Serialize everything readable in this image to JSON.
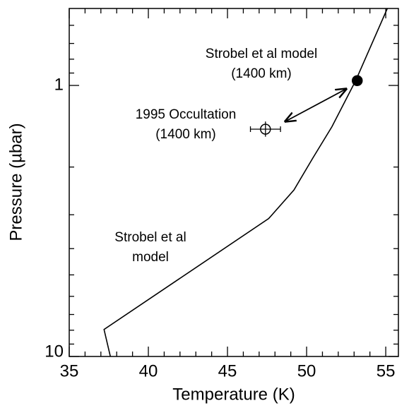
{
  "chart_data": {
    "type": "line",
    "xlabel": "Temperature (K)",
    "ylabel": "Pressure (µbar)",
    "xlim": [
      35,
      55.8
    ],
    "ylim": [
      0.52,
      10
    ],
    "log_y": true,
    "y_inverted": true,
    "xticks": [
      35,
      40,
      45,
      50,
      55
    ],
    "xminor": [
      36,
      37,
      38,
      39,
      41,
      42,
      43,
      44,
      46,
      47,
      48,
      49,
      51,
      52,
      53,
      54
    ],
    "yticks": [
      1,
      10
    ],
    "yminor": [
      0.6,
      0.7,
      0.8,
      0.9,
      2,
      3,
      4,
      5,
      6,
      7,
      8,
      9
    ],
    "series": [
      {
        "color": "#000000",
        "x": [
          37.6,
          37.2,
          47.6,
          49.2,
          50.4,
          51.6,
          53.1,
          55.1
        ],
        "values": [
          10,
          7.95,
          3.1,
          2.43,
          1.85,
          1.42,
          0.96,
          0.52
        ]
      }
    ],
    "points": [
      {
        "x": 53.2,
        "y": 0.96,
        "fill": "#000000"
      },
      {
        "x": 47.4,
        "y": 1.45,
        "fill": "none",
        "xerr": 0.95,
        "yerr": 0.05
      }
    ],
    "annotations": [
      [
        "Strobel et al model",
        "(1400 km)"
      ],
      [
        "1995 Occultation",
        "(1400 km)"
      ],
      [
        "Strobel et al",
        "model"
      ]
    ]
  }
}
